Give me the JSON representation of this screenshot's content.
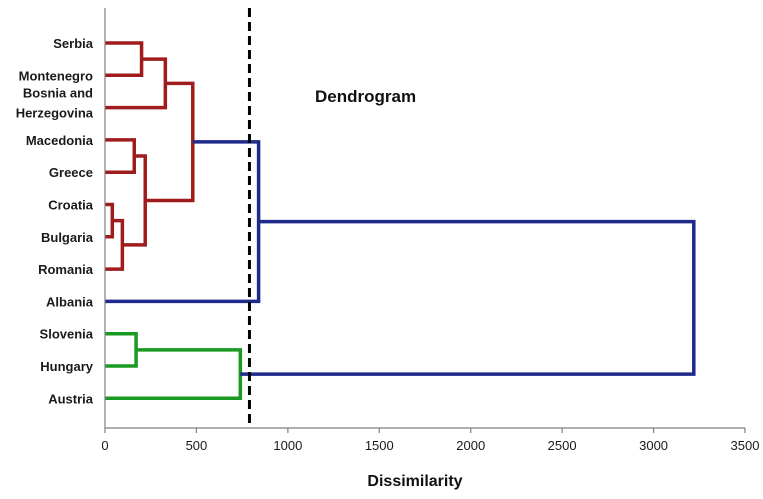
{
  "chart_data": {
    "type": "dendrogram",
    "title": "Dendrogram",
    "xlabel": "Dissimilarity",
    "xlim": [
      0,
      3500
    ],
    "x_ticks": [
      0,
      500,
      1000,
      1500,
      2000,
      2500,
      3000,
      3500
    ],
    "cut_line": 790,
    "leaves": [
      "Serbia",
      "Montenegro",
      "Bosnia and Herzegovina",
      "Macedonia",
      "Greece",
      "Croatia",
      "Bulgaria",
      "Romania",
      "Albania",
      "Slovenia",
      "Hungary",
      "Austria"
    ],
    "leaf_display": [
      [
        "Serbia"
      ],
      [
        "Montenegro"
      ],
      [
        "Bosnia and",
        "Herzegovina"
      ],
      [
        "Macedonia"
      ],
      [
        "Greece"
      ],
      [
        "Croatia"
      ],
      [
        "Bulgaria"
      ],
      [
        "Romania"
      ],
      [
        "Albania"
      ],
      [
        "Slovenia"
      ],
      [
        "Hungary"
      ],
      [
        "Austria"
      ]
    ],
    "clusters": [
      {
        "name": "red",
        "color": "#a01c1c",
        "leaves": [
          "Serbia",
          "Montenegro",
          "Bosnia and Herzegovina",
          "Macedonia",
          "Greece",
          "Croatia",
          "Bulgaria",
          "Romania"
        ]
      },
      {
        "name": "blue",
        "color": "#1f2a8a",
        "leaves": [
          "Albania"
        ]
      },
      {
        "name": "green",
        "color": "#1a9a24",
        "leaves": [
          "Slovenia",
          "Hungary",
          "Austria"
        ]
      }
    ],
    "merges": [
      {
        "id": "m1",
        "children": [
          "Croatia",
          "Bulgaria"
        ],
        "height": 40,
        "cluster": "red"
      },
      {
        "id": "m2",
        "children": [
          "m1",
          "Romania"
        ],
        "height": 95,
        "cluster": "red"
      },
      {
        "id": "m3",
        "children": [
          "Macedonia",
          "Greece"
        ],
        "height": 160,
        "cluster": "red"
      },
      {
        "id": "m4",
        "children": [
          "m3",
          "m2"
        ],
        "height": 220,
        "cluster": "red"
      },
      {
        "id": "m5",
        "children": [
          "Serbia",
          "Montenegro"
        ],
        "height": 200,
        "cluster": "red"
      },
      {
        "id": "m6",
        "children": [
          "m5",
          "Bosnia and Herzegovina"
        ],
        "height": 330,
        "cluster": "red"
      },
      {
        "id": "m7",
        "children": [
          "m6",
          "m4"
        ],
        "height": 480,
        "cluster": "red"
      },
      {
        "id": "m8",
        "children": [
          "Slovenia",
          "Hungary"
        ],
        "height": 170,
        "cluster": "green"
      },
      {
        "id": "m9",
        "children": [
          "m8",
          "Austria"
        ],
        "height": 740,
        "cluster": "green"
      },
      {
        "id": "m10",
        "children": [
          "m7",
          "Albania"
        ],
        "height": 840,
        "cluster": "blue"
      },
      {
        "id": "m11",
        "children": [
          "m10",
          "m9"
        ],
        "height": 3220,
        "cluster": "blue"
      }
    ]
  }
}
